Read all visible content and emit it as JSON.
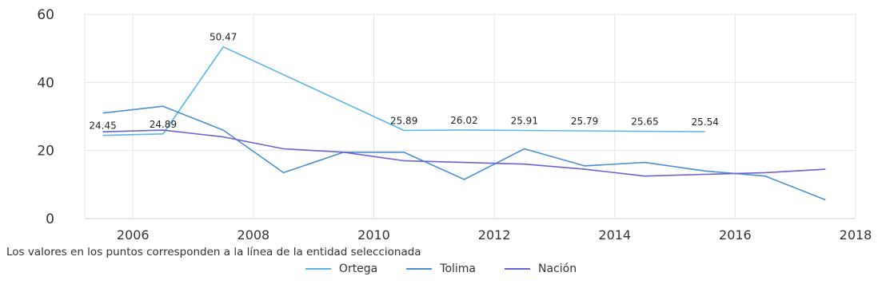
{
  "chart_data": {
    "type": "line",
    "title": "",
    "xlabel": "",
    "ylabel": "",
    "xlim": [
      2005.2,
      2018
    ],
    "ylim": [
      0,
      60
    ],
    "x_ticks": [
      "2006",
      "2008",
      "2010",
      "2012",
      "2014",
      "2016",
      "2018"
    ],
    "y_ticks": [
      "0",
      "20",
      "40",
      "60"
    ],
    "grid": true,
    "legend_position": "bottom-center",
    "note": "Los valores en los puntos corresponden a la línea de la entidad seleccionada",
    "series": [
      {
        "name": "Ortega",
        "color": "#5bb5e8",
        "x": [
          2005.5,
          2006.5,
          2007.5,
          2010.5,
          2011.5,
          2012.5,
          2013.5,
          2014.5,
          2015.5
        ],
        "values": [
          24.45,
          24.89,
          50.47,
          25.89,
          26.02,
          25.91,
          25.79,
          25.65,
          25.54
        ],
        "labels": [
          "24.45",
          "24.89",
          "50.47",
          "25.89",
          "26.02",
          "25.91",
          "25.79",
          "25.65",
          "25.54"
        ]
      },
      {
        "name": "Tolima",
        "color": "#4a90d0",
        "x": [
          2005.5,
          2006.5,
          2007.5,
          2008.5,
          2009.5,
          2010.5,
          2011.5,
          2012.5,
          2013.5,
          2014.5,
          2015.5,
          2016.5,
          2017.5
        ],
        "values": [
          31,
          33,
          26,
          13.5,
          19.5,
          19.5,
          11.5,
          20.5,
          15.5,
          16.5,
          14,
          12.5,
          5.5
        ]
      },
      {
        "name": "Nación",
        "color": "#6a60d8",
        "x": [
          2005.5,
          2006.5,
          2007.5,
          2008.5,
          2009.5,
          2010.5,
          2011.5,
          2012.5,
          2013.5,
          2014.5,
          2015.5,
          2016.5,
          2017.5
        ],
        "values": [
          25.5,
          26,
          24,
          20.5,
          19.5,
          17,
          16.5,
          16,
          14.5,
          12.5,
          13,
          13.5,
          14.5
        ]
      }
    ]
  }
}
